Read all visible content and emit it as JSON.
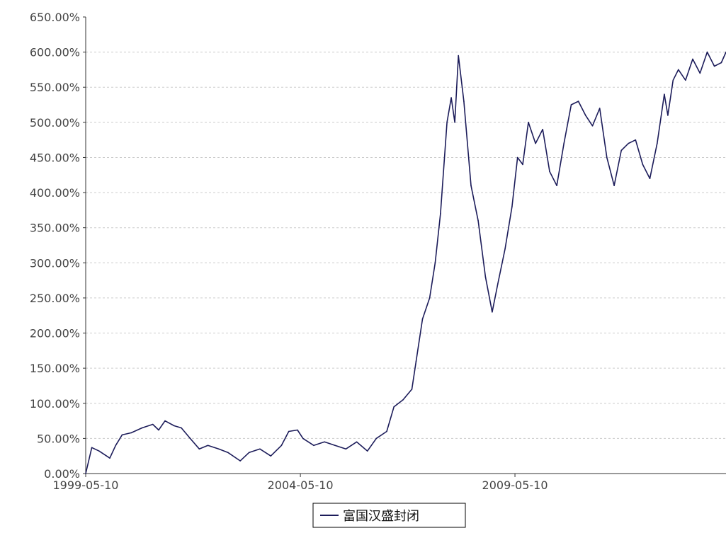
{
  "chart_data": {
    "type": "line",
    "title": "",
    "xlabel": "",
    "ylabel": "",
    "y_unit": "%",
    "ylim": [
      0,
      650
    ],
    "y_ticks": [
      0,
      50,
      100,
      150,
      200,
      250,
      300,
      350,
      400,
      450,
      500,
      550,
      600,
      650
    ],
    "y_tick_labels": [
      "0.00%",
      "50.00%",
      "100.00%",
      "150.00%",
      "200.00%",
      "250.00%",
      "300.00%",
      "350.00%",
      "400.00%",
      "450.00%",
      "500.00%",
      "550.00%",
      "600.00%",
      "650.00%"
    ],
    "xlim": [
      "1999-05-10",
      "2014-04-10"
    ],
    "x_tick_labels": [
      "1999-05-10",
      "2004-05-10",
      "2009-05-10"
    ],
    "x_ticks": [
      "1999-05-10",
      "2004-05-10",
      "2009-05-10"
    ],
    "grid": "horizontal-dashed",
    "legend_position": "bottom-center",
    "colors": {
      "series": "#1c1c5a",
      "grid": "#cccccc",
      "axis": "#333333"
    },
    "series": [
      {
        "name": "富国汉盛封闭",
        "x": [
          "1999-05-10",
          "1999-07-01",
          "1999-09-01",
          "1999-12-01",
          "2000-01-20",
          "2000-03-15",
          "2000-06-01",
          "2000-09-01",
          "2000-12-01",
          "2001-01-20",
          "2001-03-15",
          "2001-06-01",
          "2001-08-01",
          "2001-10-15",
          "2002-01-01",
          "2002-03-15",
          "2002-06-15",
          "2002-09-01",
          "2002-12-15",
          "2003-03-01",
          "2003-06-01",
          "2003-09-01",
          "2003-12-01",
          "2004-02-01",
          "2004-04-15",
          "2004-06-01",
          "2004-09-01",
          "2004-12-01",
          "2005-03-01",
          "2005-06-01",
          "2005-09-01",
          "2005-12-01",
          "2006-02-15",
          "2006-05-15",
          "2006-07-15",
          "2006-10-01",
          "2006-12-15",
          "2007-01-20",
          "2007-03-15",
          "2007-05-15",
          "2007-07-01",
          "2007-08-15",
          "2007-10-10",
          "2007-11-15",
          "2007-12-15",
          "2008-01-15",
          "2008-03-01",
          "2008-05-01",
          "2008-07-01",
          "2008-09-01",
          "2008-10-28",
          "2008-12-15",
          "2009-02-15",
          "2009-04-15",
          "2009-06-01",
          "2009-07-15",
          "2009-09-01",
          "2009-11-01",
          "2010-01-01",
          "2010-03-01",
          "2010-05-01",
          "2010-07-01",
          "2010-09-01",
          "2010-11-01",
          "2011-01-01",
          "2011-03-01",
          "2011-05-01",
          "2011-07-01",
          "2011-09-01",
          "2011-11-01",
          "2012-01-01",
          "2012-03-01",
          "2012-05-01",
          "2012-07-01",
          "2012-09-01",
          "2012-11-01",
          "2012-12-01",
          "2013-01-15",
          "2013-03-01",
          "2013-05-01",
          "2013-07-01",
          "2013-09-01",
          "2013-11-01",
          "2014-01-01",
          "2014-03-01",
          "2014-04-10"
        ],
        "values": [
          0,
          37,
          32,
          22,
          40,
          55,
          58,
          65,
          70,
          62,
          75,
          68,
          65,
          50,
          35,
          40,
          35,
          30,
          18,
          30,
          35,
          25,
          40,
          60,
          62,
          50,
          40,
          45,
          40,
          35,
          45,
          32,
          50,
          60,
          95,
          105,
          120,
          160,
          220,
          250,
          300,
          370,
          500,
          535,
          500,
          595,
          530,
          410,
          360,
          280,
          230,
          270,
          320,
          380,
          450,
          440,
          500,
          470,
          490,
          430,
          410,
          470,
          525,
          530,
          510,
          495,
          520,
          450,
          410,
          460,
          470,
          475,
          440,
          420,
          470,
          540,
          510,
          560,
          575,
          560,
          590,
          570,
          600,
          580,
          585,
          600
        ]
      }
    ]
  }
}
